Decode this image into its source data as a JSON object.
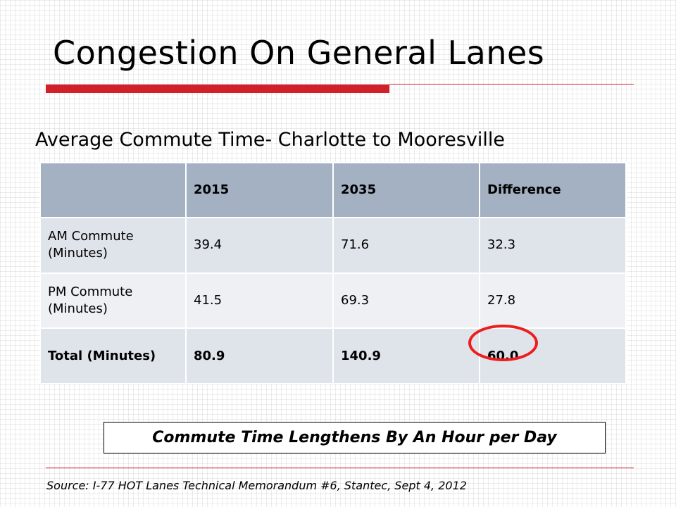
{
  "slide": {
    "title": "Congestion On General Lanes",
    "subtitle": "Average Commute Time- Charlotte to Mooresville",
    "callout": "Commute Time Lengthens By An Hour per Day",
    "source": "Source: I-77 HOT Lanes Technical Memorandum #6, Stantec, Sept 4, 2012",
    "accent_color": "#d0202a",
    "highlight_color": "#ee1c1c"
  },
  "table": {
    "headers": [
      "",
      "2015",
      "2035",
      "Difference"
    ],
    "rows": [
      [
        "AM Commute (Minutes)",
        "39.4",
        "71.6",
        "32.3"
      ],
      [
        "PM Commute (Minutes)",
        "41.5",
        "69.3",
        "27.8"
      ],
      [
        "Total (Minutes)",
        "80.9",
        "140.9",
        "60.0"
      ]
    ]
  }
}
